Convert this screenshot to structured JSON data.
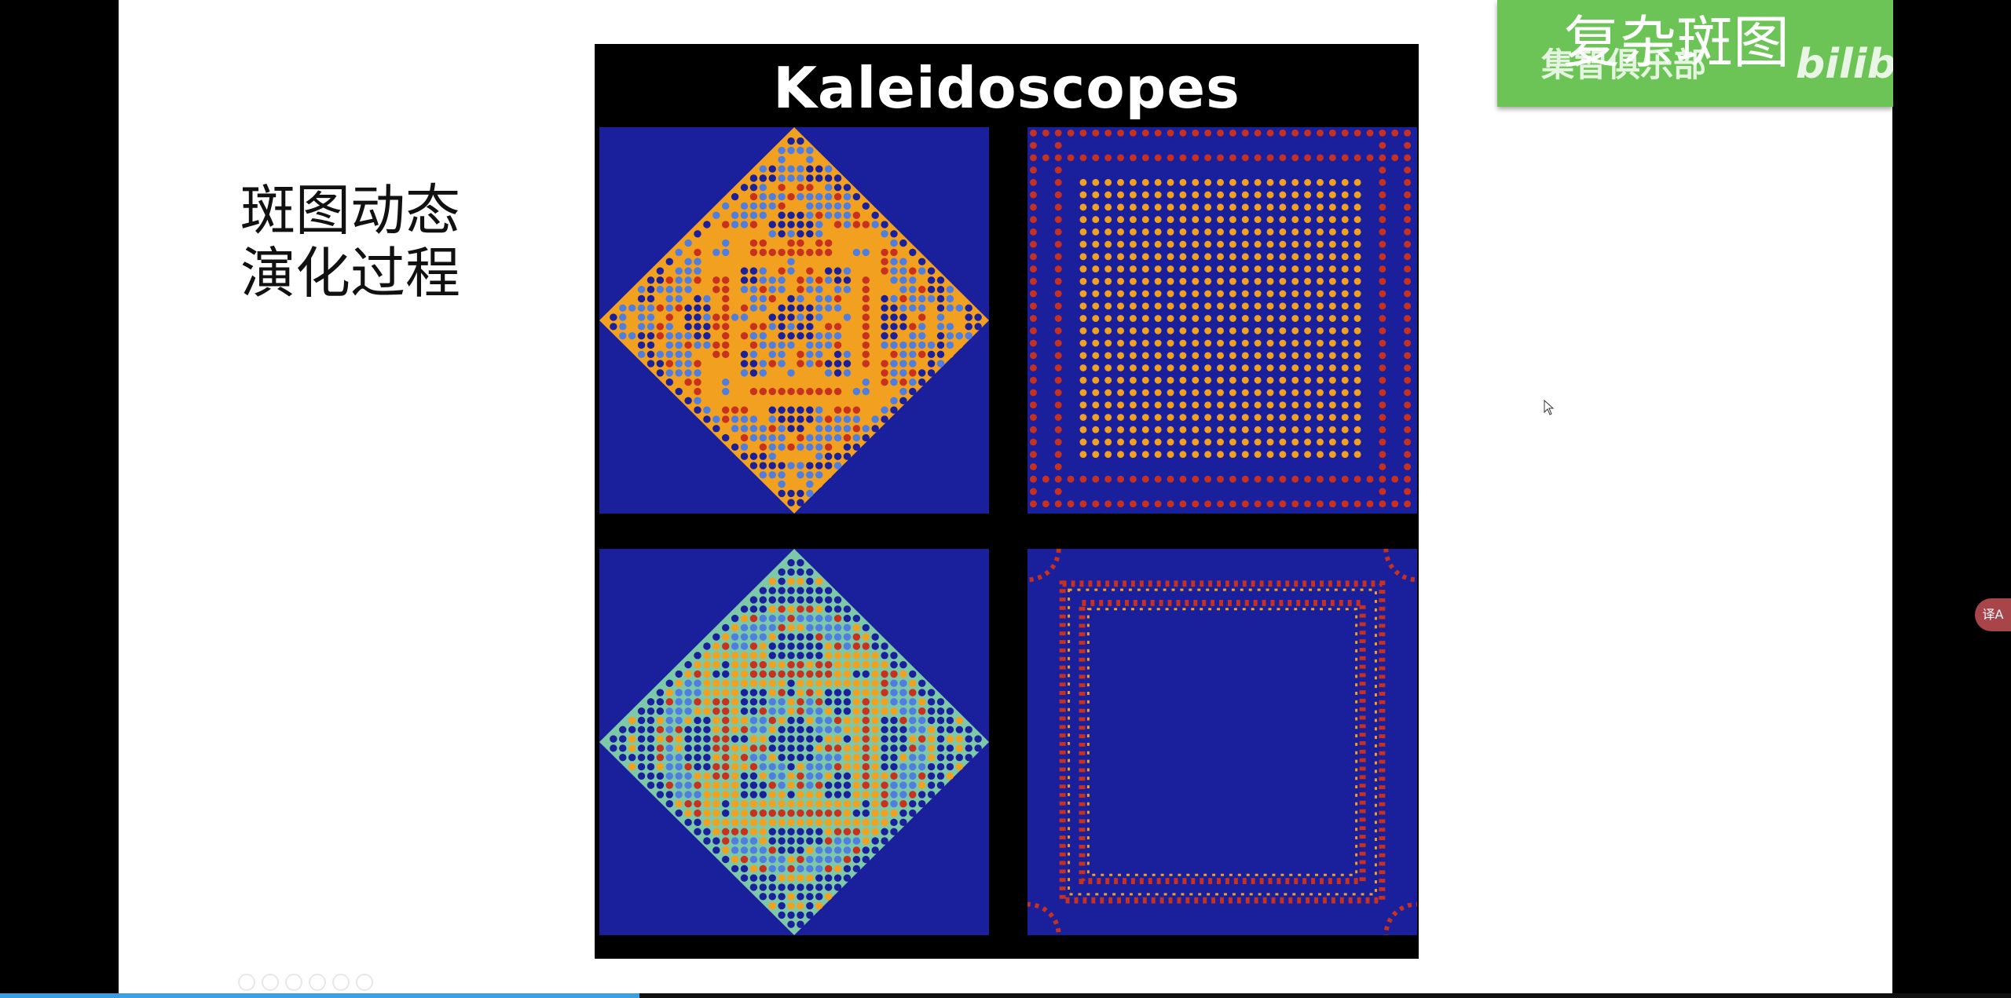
{
  "slide": {
    "heading_line1": "斑图动态",
    "heading_line2": "演化过程"
  },
  "figure": {
    "title": "Kaleidoscopes",
    "colors": {
      "blue": "#1a1f9c",
      "orange": "#f2a020",
      "red": "#c8311e",
      "teal": "#7cc8a8",
      "light_blue": "#4f7ee0",
      "frame": "#000000"
    }
  },
  "overlay": {
    "badge_title": "复杂斑图",
    "badge_subtitle": "集智俱乐部",
    "logo_text": "bilibili",
    "badge_color": "#6cc456"
  },
  "player": {
    "translate_label": "译A",
    "progress_fraction": 0.318,
    "progress_color": "#3aa0e6",
    "toolbar_icons": [
      "prev-icon",
      "next-icon",
      "pen-icon",
      "copy-icon",
      "zoom-icon",
      "more-icon"
    ]
  }
}
